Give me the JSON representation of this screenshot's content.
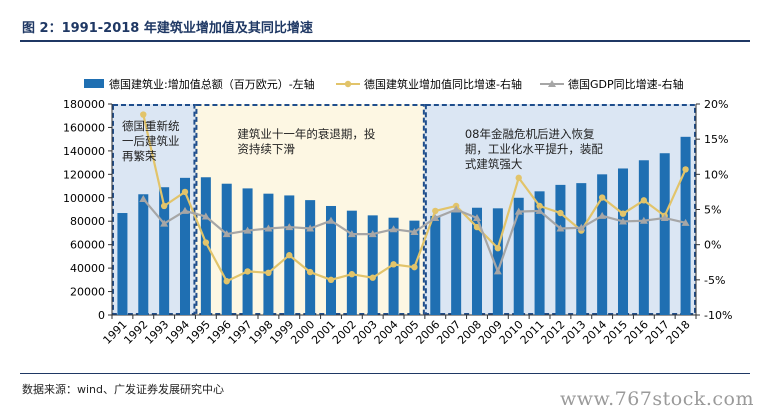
{
  "figure": {
    "title": "图 2：1991-2018 年建筑业增加值及其同比增速",
    "source": "数据来源：wind、广发证券发展研究中心",
    "watermark": "www.767stock.com"
  },
  "chart_data": {
    "type": "bar+line",
    "categories": [
      "1991",
      "1992",
      "1993",
      "1994",
      "1995",
      "1996",
      "1997",
      "1998",
      "1999",
      "2000",
      "2001",
      "2002",
      "2003",
      "2004",
      "2005",
      "2006",
      "2007",
      "2008",
      "2009",
      "2010",
      "2011",
      "2012",
      "2013",
      "2014",
      "2015",
      "2016",
      "2017",
      "2018"
    ],
    "y_left": {
      "min": 0,
      "max": 180000,
      "step": 20000,
      "ticks": [
        "0",
        "20000",
        "40000",
        "60000",
        "80000",
        "100000",
        "120000",
        "140000",
        "160000",
        "180000"
      ]
    },
    "y_right": {
      "min": -10,
      "max": 20,
      "step": 5,
      "ticks": [
        "-10%",
        "-5%",
        "0%",
        "5%",
        "10%",
        "15%",
        "20%"
      ]
    },
    "series": [
      {
        "name": "德国建筑业:增加值总额（百万欧元）-左轴",
        "type": "bar",
        "axis": "left",
        "color": "#1f6fb2",
        "values": [
          87000,
          103000,
          109000,
          117000,
          117500,
          112000,
          108000,
          103500,
          102000,
          98000,
          93000,
          89000,
          85000,
          83000,
          80500,
          84500,
          89000,
          91500,
          91000,
          100000,
          105500,
          111000,
          112500,
          120000,
          125000,
          132000,
          138000,
          152000
        ]
      },
      {
        "name": "德国建筑业增加值同比增速-右轴",
        "type": "line",
        "axis": "right",
        "color": "#e2c46a",
        "values": [
          null,
          18.5,
          5.5,
          7.5,
          0.3,
          -5.2,
          -3.8,
          -4.0,
          -1.5,
          -3.9,
          -5.0,
          -4.2,
          -4.7,
          -2.8,
          -3.2,
          4.8,
          5.5,
          2.5,
          -0.5,
          9.5,
          5.5,
          4.5,
          2.0,
          6.7,
          4.4,
          6.3,
          4.1,
          10.7
        ]
      },
      {
        "name": "德国GDP同比增速-右轴",
        "type": "line",
        "axis": "right",
        "color": "#a6a6a6",
        "values": [
          null,
          6.5,
          3.0,
          4.8,
          4.0,
          1.5,
          2.0,
          2.3,
          2.5,
          2.3,
          3.4,
          1.5,
          1.5,
          2.2,
          1.8,
          3.8,
          5.0,
          3.8,
          -3.8,
          4.7,
          4.8,
          2.3,
          2.4,
          4.1,
          3.3,
          3.4,
          3.8,
          3.1
        ]
      }
    ],
    "legend": {
      "position": "top"
    },
    "grid": false,
    "periods": [
      {
        "from": "1991",
        "to": "1994",
        "color": "#dbe6f3",
        "label": [
          "德国重新统",
          "一后建筑业",
          "再繁荣"
        ]
      },
      {
        "from": "1995",
        "to": "2005",
        "color": "#fdf7e3",
        "label": [
          "建筑业十一年的衰退期，投",
          "资持续下滑"
        ]
      },
      {
        "from": "2006",
        "to": "2018",
        "color": "#dbe6f3",
        "label": [
          "08年金融危机后进入恢复",
          "期，工业化水平提升，装配",
          "式建筑强大"
        ]
      }
    ]
  }
}
